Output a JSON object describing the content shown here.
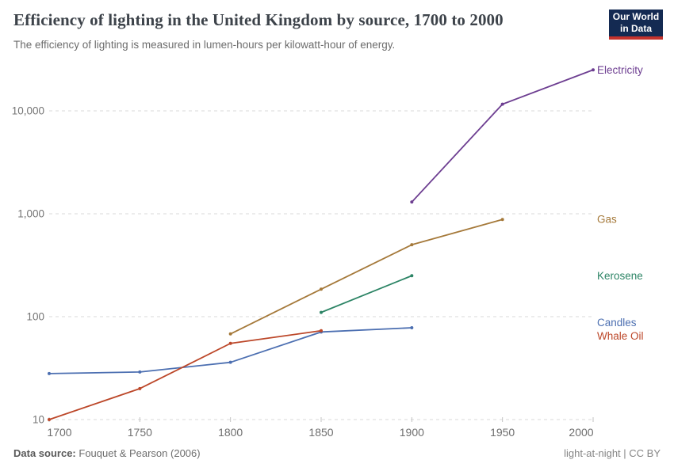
{
  "header": {
    "title": "Efficiency of lighting in the United Kingdom by source, 1700 to 2000",
    "subtitle": "The efficiency of lighting is measured in lumen-hours per kilowatt-hour of energy.",
    "logo_line1": "Our World",
    "logo_line2": "in Data",
    "logo_bg_color": "#142a52",
    "logo_accent_color": "#c5332d"
  },
  "footer": {
    "source_label": "Data source:",
    "source_value": "Fouquet & Pearson (2006)",
    "license": "light-at-night | CC BY"
  },
  "chart_data": {
    "type": "line",
    "title": "Efficiency of lighting in the United Kingdom by source, 1700 to 2000",
    "xlabel": "",
    "ylabel": "lumen-hours per kilowatt-hour",
    "y_scale": "log",
    "x_range": [
      1700,
      2000
    ],
    "ylim": [
      10,
      30000
    ],
    "grid": "horizontal-dashed",
    "grid_color": "#d9d9d9",
    "tick_label_color": "#757575",
    "legend_position": "right-end-labels",
    "x_ticks": [
      1700,
      1750,
      1800,
      1850,
      1900,
      1950,
      2000
    ],
    "y_ticks": [
      {
        "value": 10,
        "label": "10"
      },
      {
        "value": 100,
        "label": "100"
      },
      {
        "value": 1000,
        "label": "1,000"
      },
      {
        "value": 10000,
        "label": "10,000"
      }
    ],
    "series": [
      {
        "name": "Electricity",
        "color": "#6d3e91",
        "points": [
          [
            1900,
            1300
          ],
          [
            1950,
            11600
          ],
          [
            2000,
            25000
          ]
        ]
      },
      {
        "name": "Gas",
        "color": "#a5793a",
        "points": [
          [
            1800,
            68
          ],
          [
            1850,
            185
          ],
          [
            1900,
            500
          ],
          [
            1950,
            880
          ]
        ]
      },
      {
        "name": "Kerosene",
        "color": "#2c8465",
        "points": [
          [
            1850,
            110
          ],
          [
            1900,
            250
          ]
        ]
      },
      {
        "name": "Candles",
        "color": "#4c6fb1",
        "points": [
          [
            1700,
            28
          ],
          [
            1750,
            29
          ],
          [
            1800,
            36
          ],
          [
            1850,
            71
          ],
          [
            1900,
            78
          ]
        ]
      },
      {
        "name": "Whale Oil",
        "color": "#bc4729",
        "points": [
          [
            1700,
            10
          ],
          [
            1750,
            20
          ],
          [
            1800,
            55
          ],
          [
            1850,
            73
          ]
        ]
      }
    ]
  }
}
